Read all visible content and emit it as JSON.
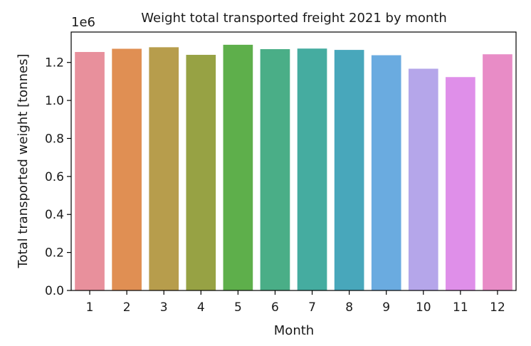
{
  "chart_data": {
    "type": "bar",
    "title": "Weight total transported freight 2021 by month",
    "xlabel": "Month",
    "ylabel": "Total transported weight [tonnes]",
    "y_offset_label": "1e6",
    "y_scale_factor": 1000000,
    "categories": [
      "1",
      "2",
      "3",
      "4",
      "5",
      "6",
      "7",
      "8",
      "9",
      "10",
      "11",
      "12"
    ],
    "values": [
      1255000,
      1272000,
      1280000,
      1240000,
      1293000,
      1270000,
      1273000,
      1266000,
      1238000,
      1167000,
      1123000,
      1243000
    ],
    "ylim": [
      0,
      1360000
    ],
    "yticks": [
      0,
      200000,
      400000,
      600000,
      800000,
      1000000,
      1200000
    ],
    "ytick_labels": [
      "0.0",
      "0.2",
      "0.4",
      "0.6",
      "0.8",
      "1.0",
      "1.2"
    ],
    "grid": false,
    "legend": "none",
    "colors": [
      "#e8909c",
      "#e08f53",
      "#b79d4c",
      "#97a244",
      "#5eaf4b",
      "#4aae87",
      "#45aca0",
      "#48a7bb",
      "#6aabe0",
      "#b5a6ea",
      "#df8fe9",
      "#e88cc6"
    ]
  }
}
